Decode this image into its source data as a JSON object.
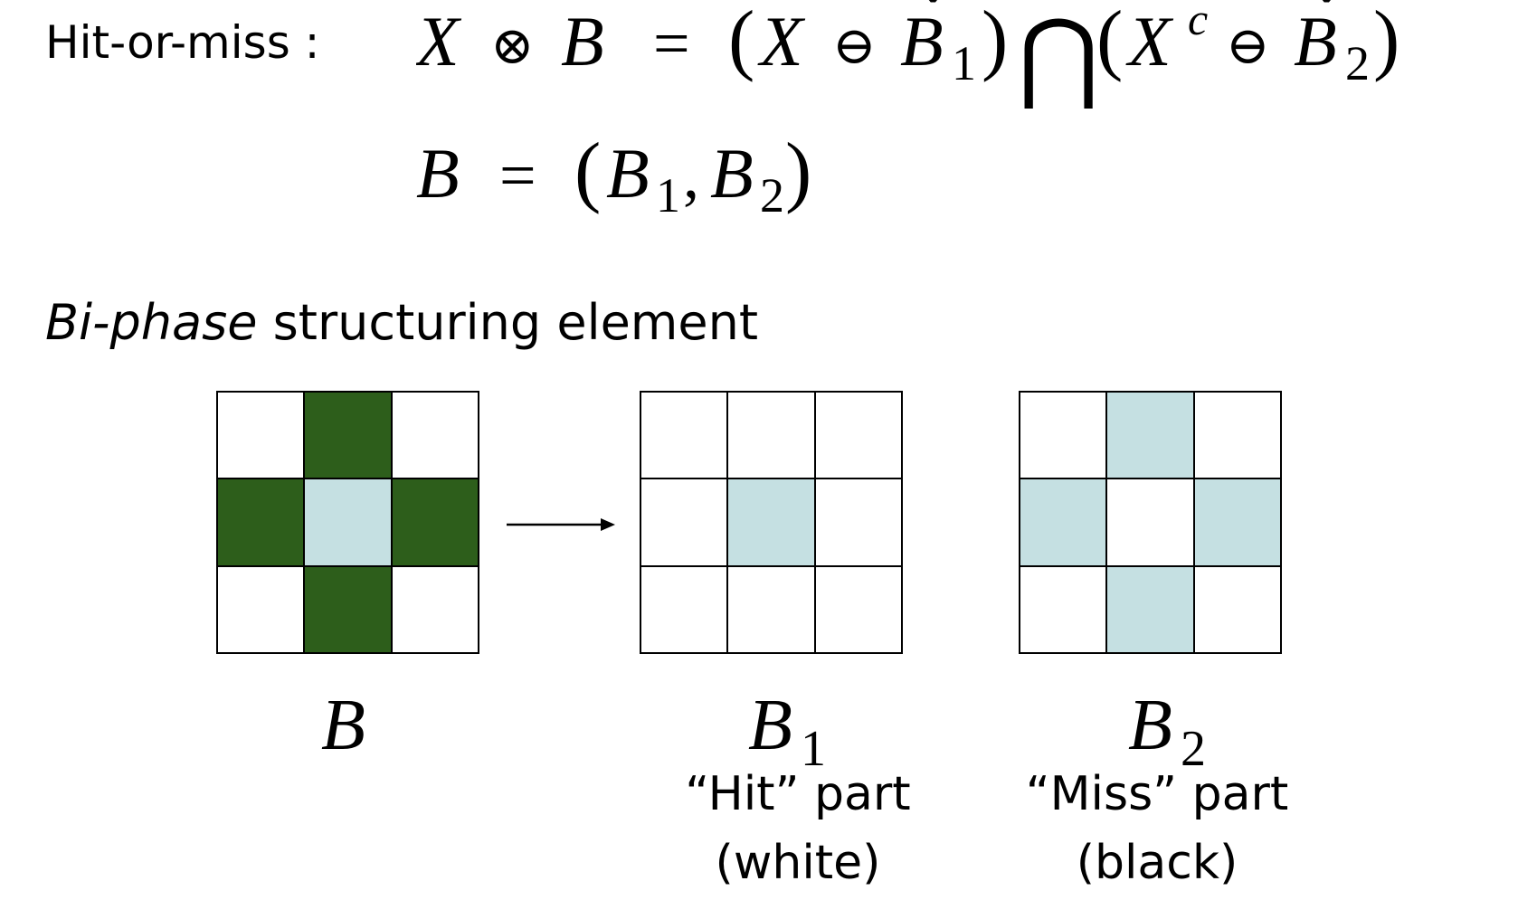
{
  "formula": {
    "label": "Hit-or-miss :",
    "hit_or_miss": {
      "lhs_x": "X",
      "op_hom": "⊗",
      "lhs_b": "B",
      "equals": "=",
      "x": "X",
      "erode": "⊖",
      "b": "B",
      "check": "ˇ",
      "sub1": "1",
      "intersect": "⋂",
      "x2": "X",
      "sup_c": "c",
      "sub2": "2"
    },
    "b_def": {
      "b": "B",
      "equals": "=",
      "b1": "B",
      "sub1": "1",
      "comma": ",",
      "b2": "B",
      "sub2": "2"
    }
  },
  "section": {
    "title_italic": "Bi-phase",
    "title_rest": " structuring element"
  },
  "colors": {
    "dark_green": "#2d5e1b",
    "light_blue": "#c5e0e2",
    "white": "#ffffff",
    "grid_line": "#000000"
  },
  "grids": {
    "B": {
      "symbol": "B",
      "cells": [
        [
          "white",
          "green",
          "white"
        ],
        [
          "green",
          "blue",
          "green"
        ],
        [
          "white",
          "green",
          "white"
        ]
      ]
    },
    "B1": {
      "symbol": "B",
      "sub": "1",
      "caption_line1": "“Hit” part",
      "caption_line2": "(white)",
      "cells": [
        [
          "white",
          "white",
          "white"
        ],
        [
          "white",
          "blue",
          "white"
        ],
        [
          "white",
          "white",
          "white"
        ]
      ]
    },
    "B2": {
      "symbol": "B",
      "sub": "2",
      "caption_line1": "“Miss” part",
      "caption_line2": "(black)",
      "cells": [
        [
          "white",
          "blue",
          "white"
        ],
        [
          "blue",
          "white",
          "blue"
        ],
        [
          "white",
          "blue",
          "white"
        ]
      ]
    }
  }
}
